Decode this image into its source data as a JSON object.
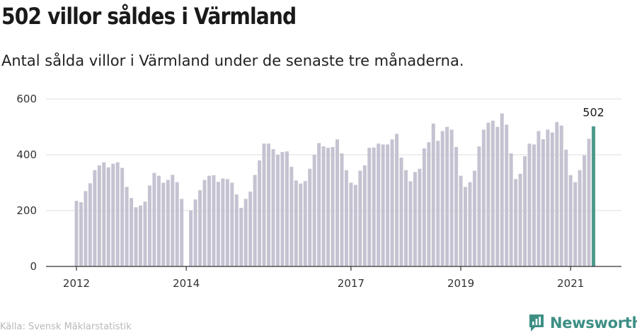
{
  "header": {
    "title": "502 villor såldes i Värmland",
    "subtitle": "Antal sålda villor i Värmland under de senaste tre månaderna."
  },
  "footer": {
    "source": "Källa: Svensk Mäklarstatistik",
    "brand": "Newsworthy",
    "brand_icon": "newsworthy-logo-icon"
  },
  "colors": {
    "bar": "#c5c3d1",
    "highlight": "#4e9b8d",
    "grid": "#dddddd",
    "axis": "#333333",
    "brand": "#3d8f84"
  },
  "chart_data": {
    "type": "bar",
    "title": "",
    "xlabel": "",
    "ylabel": "",
    "ylim": [
      0,
      600
    ],
    "yticks": [
      0,
      200,
      400,
      600
    ],
    "xticks": [
      "2012",
      "2014",
      "2017",
      "2019",
      "2021"
    ],
    "grid": true,
    "legend": "none",
    "highlight_label": "502",
    "series": [
      {
        "values": [
          235,
          230,
          270,
          298,
          345,
          362,
          373,
          355,
          368,
          373,
          353,
          285,
          245,
          212,
          218,
          232,
          290,
          335,
          325,
          300,
          310,
          328,
          302,
          242,
          0,
          201,
          240,
          273,
          310,
          325,
          327,
          303,
          315,
          313,
          300,
          258,
          210,
          242,
          268,
          328,
          380,
          440,
          440,
          420,
          400,
          410,
          412,
          357,
          308,
          297,
          306,
          350,
          400,
          442,
          430,
          425,
          428,
          455,
          405,
          345,
          300,
          292,
          343,
          362,
          425,
          426,
          440,
          437,
          437,
          455,
          475,
          390,
          345,
          305,
          338,
          350,
          423,
          445,
          512,
          450,
          485,
          500,
          490,
          428,
          325,
          285,
          302,
          343,
          430,
          490,
          515,
          522,
          500,
          548,
          508,
          405,
          313,
          332,
          395,
          440,
          437,
          485,
          456,
          490,
          480,
          517,
          505,
          418,
          327,
          302,
          345,
          398,
          457,
          502
        ]
      }
    ]
  }
}
